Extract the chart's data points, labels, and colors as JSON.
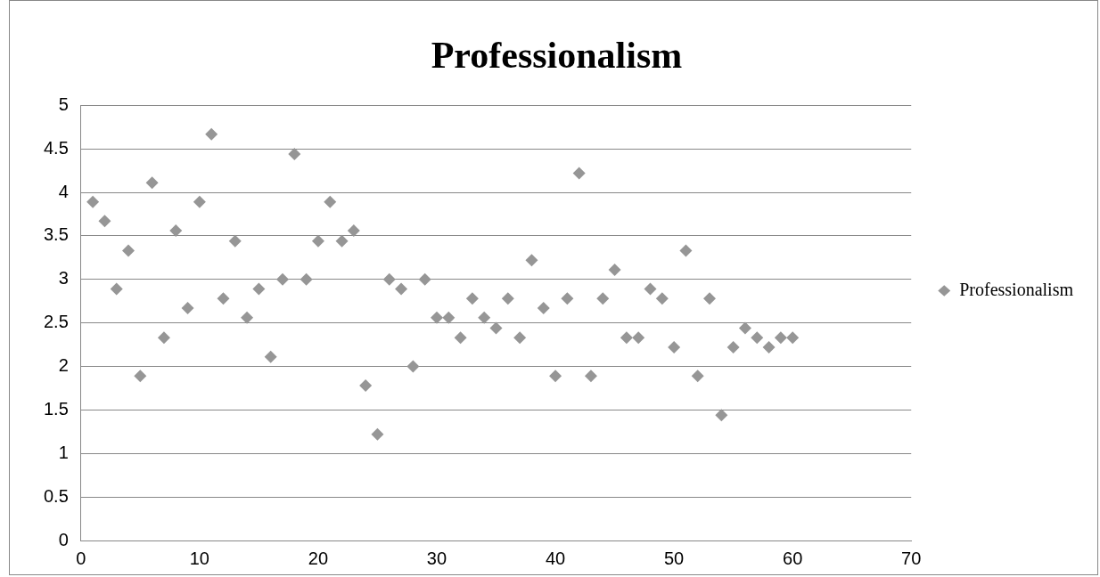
{
  "chart_data": {
    "type": "scatter",
    "title": "Professionalism",
    "x": [
      1,
      2,
      3,
      4,
      5,
      6,
      7,
      8,
      9,
      10,
      11,
      12,
      13,
      14,
      15,
      16,
      17,
      18,
      19,
      20,
      21,
      22,
      23,
      24,
      25,
      26,
      27,
      28,
      29,
      30,
      31,
      32,
      33,
      34,
      35,
      36,
      37,
      38,
      39,
      40,
      41,
      42,
      43,
      44,
      45,
      46,
      47,
      48,
      49,
      50,
      51,
      52,
      53,
      54,
      55,
      56,
      57,
      58,
      59,
      60
    ],
    "series": [
      {
        "name": "Professionalism",
        "color": "#969696",
        "values": [
          3.89,
          3.67,
          2.89,
          3.33,
          1.89,
          4.11,
          2.33,
          3.56,
          2.67,
          3.89,
          4.67,
          2.78,
          3.44,
          2.56,
          2.89,
          2.11,
          3.0,
          4.44,
          3.0,
          3.44,
          3.89,
          3.44,
          3.56,
          1.78,
          1.22,
          3.0,
          2.89,
          2.0,
          3.0,
          2.56,
          2.56,
          2.33,
          2.78,
          2.56,
          2.44,
          2.78,
          2.33,
          3.22,
          2.67,
          1.89,
          2.78,
          4.22,
          1.89,
          2.78,
          3.11,
          2.33,
          2.33,
          2.89,
          2.78,
          2.22,
          3.33,
          1.89,
          2.78,
          1.44,
          2.22,
          2.44,
          2.33,
          2.22,
          2.33,
          2.33
        ]
      }
    ],
    "xlim": [
      0,
      70
    ],
    "xticks": [
      0,
      10,
      20,
      30,
      40,
      50,
      60,
      70
    ],
    "ylim": [
      0,
      5
    ],
    "yticks": [
      0,
      0.5,
      1,
      1.5,
      2,
      2.5,
      3,
      3.5,
      4,
      4.5,
      5
    ],
    "grid": "y",
    "legend": "right",
    "marker": "diamond"
  }
}
